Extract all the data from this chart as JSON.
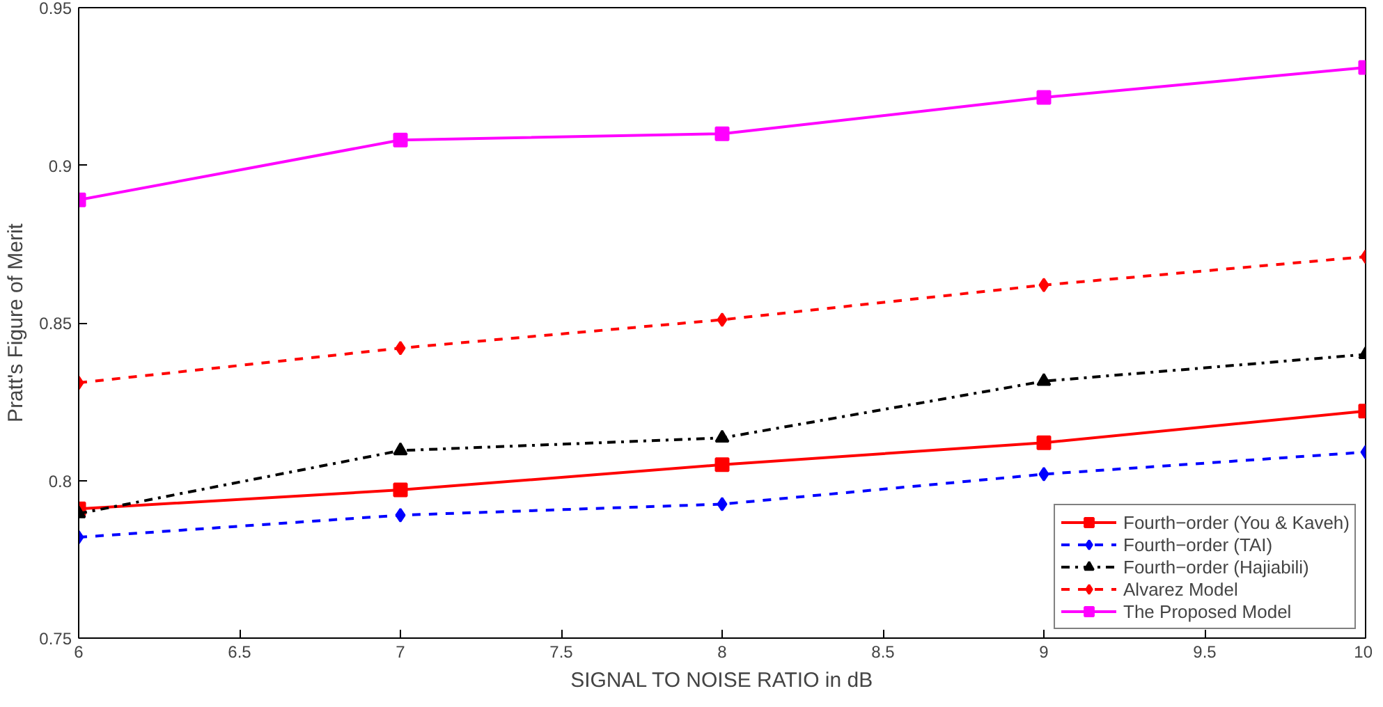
{
  "chart_data": {
    "type": "line",
    "xlabel": "SIGNAL TO NOISE RATIO in dB",
    "ylabel": "Pratt's Figure of Merit",
    "x": [
      6,
      7,
      8,
      9,
      10
    ],
    "xlim": [
      6,
      10
    ],
    "xticks": [
      6,
      6.5,
      7,
      7.5,
      8,
      8.5,
      9,
      9.5,
      10
    ],
    "ylim": [
      0.75,
      0.95
    ],
    "yticks": [
      0.75,
      0.8,
      0.85,
      0.9,
      0.95
    ],
    "grid": false,
    "legend": "bottom right",
    "series": [
      {
        "name": "Fourth−order (You & Kaveh)",
        "color": "#ff0000",
        "line_style": "solid",
        "marker": "square",
        "values": [
          0.791,
          0.797,
          0.805,
          0.812,
          0.822
        ]
      },
      {
        "name": "Fourth−order (TAI)",
        "color": "#0000ff",
        "line_style": "dashed",
        "marker": "diamond",
        "values": [
          0.782,
          0.789,
          0.7925,
          0.802,
          0.809
        ]
      },
      {
        "name": "Fourth−order (Hajiabili)",
        "color": "#000000",
        "line_style": "dashdot",
        "marker": "triangle",
        "values": [
          0.7895,
          0.8095,
          0.8135,
          0.8315,
          0.84
        ]
      },
      {
        "name": "Alvarez Model",
        "color": "#ff0000",
        "line_style": "dashed",
        "marker": "diamond",
        "values": [
          0.831,
          0.842,
          0.851,
          0.862,
          0.871
        ]
      },
      {
        "name": "The Proposed Model",
        "color": "#ff00ff",
        "line_style": "solid",
        "marker": "square",
        "values": [
          0.889,
          0.908,
          0.91,
          0.9215,
          0.931
        ]
      }
    ]
  }
}
